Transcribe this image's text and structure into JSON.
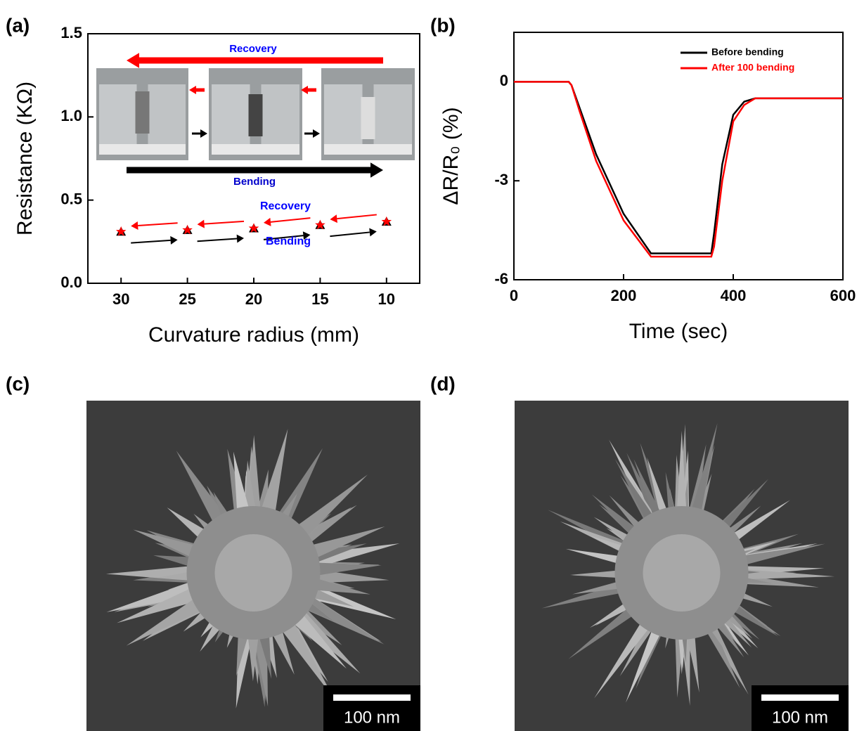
{
  "chart_data": [
    {
      "type": "scatter",
      "panel": "(a)",
      "x_label": "Curvature radius (mm)",
      "y_label": "Resistance (KΩ)",
      "x": [
        30,
        25,
        20,
        15,
        10
      ],
      "series": [
        {
          "marker": "triangle",
          "color": "#000000",
          "values": [
            0.31,
            0.32,
            0.33,
            0.35,
            0.37
          ]
        },
        {
          "marker": "star",
          "color": "#ff0000",
          "values": [
            0.31,
            0.32,
            0.33,
            0.35,
            0.37
          ]
        }
      ],
      "xlim": [
        32.5,
        7.5
      ],
      "xticks": [
        30,
        25,
        20,
        15,
        10
      ],
      "ylim": [
        0,
        1.5
      ],
      "yticks": [
        {
          "value": 0,
          "label": "0.0"
        },
        0.5,
        {
          "value": 1,
          "label": "1.0"
        },
        1.5
      ],
      "annotations": [
        "Recovery",
        "Bending",
        "Recovery",
        "Bending"
      ]
    },
    {
      "type": "line",
      "panel": "(b)",
      "x_label": "Time (sec)",
      "y_label": "ΔR/R₀ (%)",
      "x": [
        0,
        100,
        105,
        120,
        150,
        200,
        250,
        300,
        360,
        365,
        380,
        400,
        420,
        440,
        500,
        600
      ],
      "series": [
        {
          "name": "Before bending",
          "color": "#000000",
          "values": [
            0,
            0,
            -0.1,
            -0.8,
            -2.2,
            -4.0,
            -5.2,
            -5.2,
            -5.2,
            -4.6,
            -2.5,
            -1.0,
            -0.6,
            -0.5,
            -0.5,
            -0.5
          ]
        },
        {
          "name": "After 100 bending",
          "color": "#ff0000",
          "values": [
            0,
            0,
            -0.1,
            -0.9,
            -2.4,
            -4.2,
            -5.3,
            -5.3,
            -5.3,
            -5.0,
            -3.0,
            -1.2,
            -0.7,
            -0.5,
            -0.5,
            -0.5
          ]
        }
      ],
      "xlim": [
        0,
        600
      ],
      "xticks": [
        0,
        200,
        400,
        600
      ],
      "ylim": [
        -6,
        1.5
      ],
      "yticks": [
        -6,
        -3,
        0
      ]
    }
  ],
  "images": [
    {
      "panel": "(c)",
      "scale_bar": "100 nm"
    },
    {
      "panel": "(d)",
      "scale_bar": "100 nm"
    }
  ]
}
